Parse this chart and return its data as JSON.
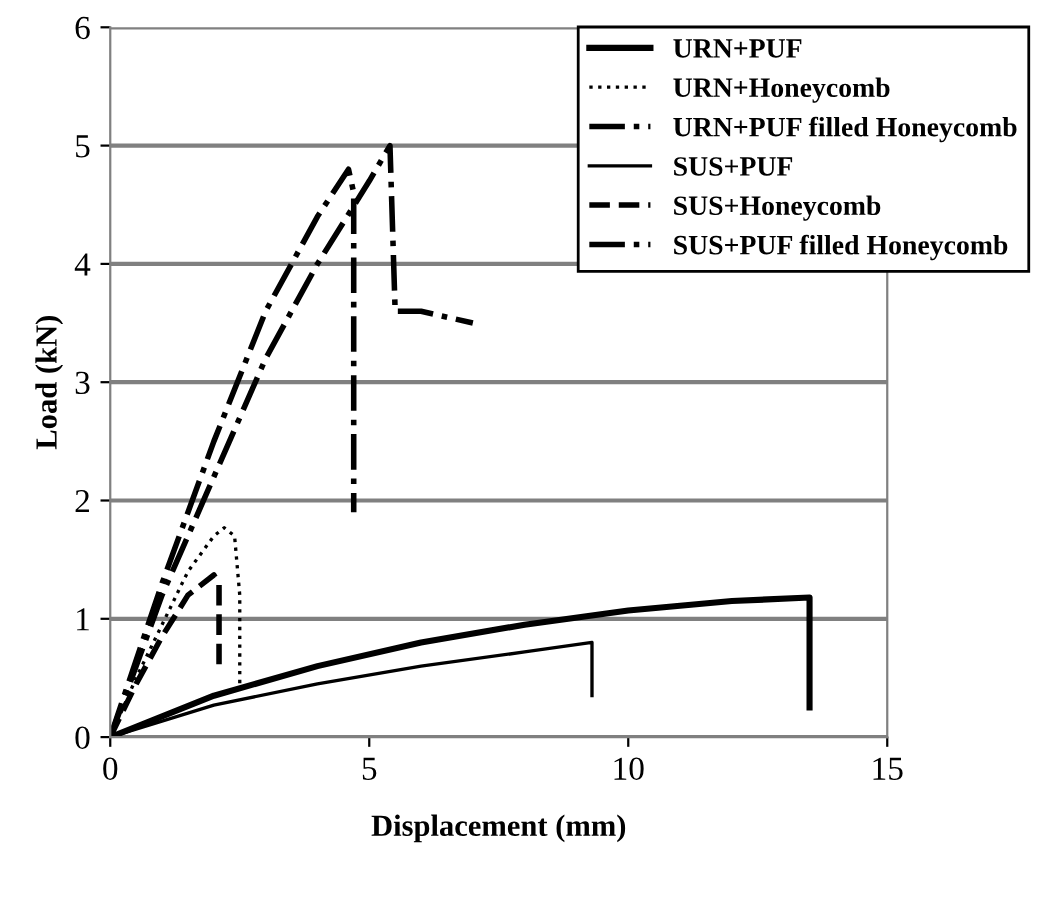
{
  "chart_data": {
    "type": "line",
    "xlabel": "Displacement (mm)",
    "ylabel": "Load (kN)",
    "xlim": [
      0,
      15
    ],
    "ylim": [
      0,
      6
    ],
    "xticks": [
      0,
      5,
      10,
      15
    ],
    "yticks": [
      0,
      1,
      2,
      3,
      4,
      5,
      6
    ],
    "grid": "y",
    "legend": "top right",
    "marker": "none",
    "series": [
      {
        "name": "URN+PUF",
        "color": "#000000",
        "line_style": "solid",
        "x": [
          0,
          2,
          4,
          6,
          8,
          10,
          12,
          13.5,
          13.5
        ],
        "values": [
          0,
          0.35,
          0.6,
          0.8,
          0.95,
          1.07,
          1.15,
          1.18,
          0.25
        ]
      },
      {
        "name": "URN+Honeycomb",
        "color": "#000000",
        "line_style": "dotted",
        "x": [
          0,
          0.5,
          1,
          1.5,
          2.0,
          2.2,
          2.4,
          2.5,
          2.5
        ],
        "values": [
          0,
          0.5,
          0.95,
          1.4,
          1.7,
          1.77,
          1.7,
          1.2,
          0.4
        ]
      },
      {
        "name": "URN+PUF filled Honeycomb",
        "color": "#000000",
        "line_style": "dashdot",
        "x": [
          0,
          1,
          2,
          3,
          4,
          5,
          5.4,
          5.5,
          6,
          7
        ],
        "values": [
          0,
          1.2,
          2.2,
          3.2,
          4.0,
          4.7,
          5.0,
          3.6,
          3.6,
          3.5
        ]
      },
      {
        "name": "SUS+PUF",
        "color": "#000000",
        "line_style": "solid",
        "x": [
          0,
          2,
          4,
          6,
          8,
          9.3,
          9.3
        ],
        "values": [
          0,
          0.27,
          0.45,
          0.6,
          0.72,
          0.8,
          0.35
        ]
      },
      {
        "name": "SUS+Honeycomb",
        "color": "#000000",
        "line_style": "dashed",
        "x": [
          0,
          0.5,
          1,
          1.5,
          2.0,
          2.1,
          2.1
        ],
        "values": [
          0,
          0.45,
          0.85,
          1.2,
          1.37,
          1.3,
          0.6
        ]
      },
      {
        "name": "SUS+PUF filled Honeycomb",
        "color": "#000000",
        "line_style": "dashdot",
        "x": [
          0,
          1,
          2,
          3,
          4,
          4.6,
          4.7,
          4.7
        ],
        "values": [
          0,
          1.3,
          2.5,
          3.6,
          4.4,
          4.8,
          4.6,
          1.9
        ]
      }
    ]
  }
}
